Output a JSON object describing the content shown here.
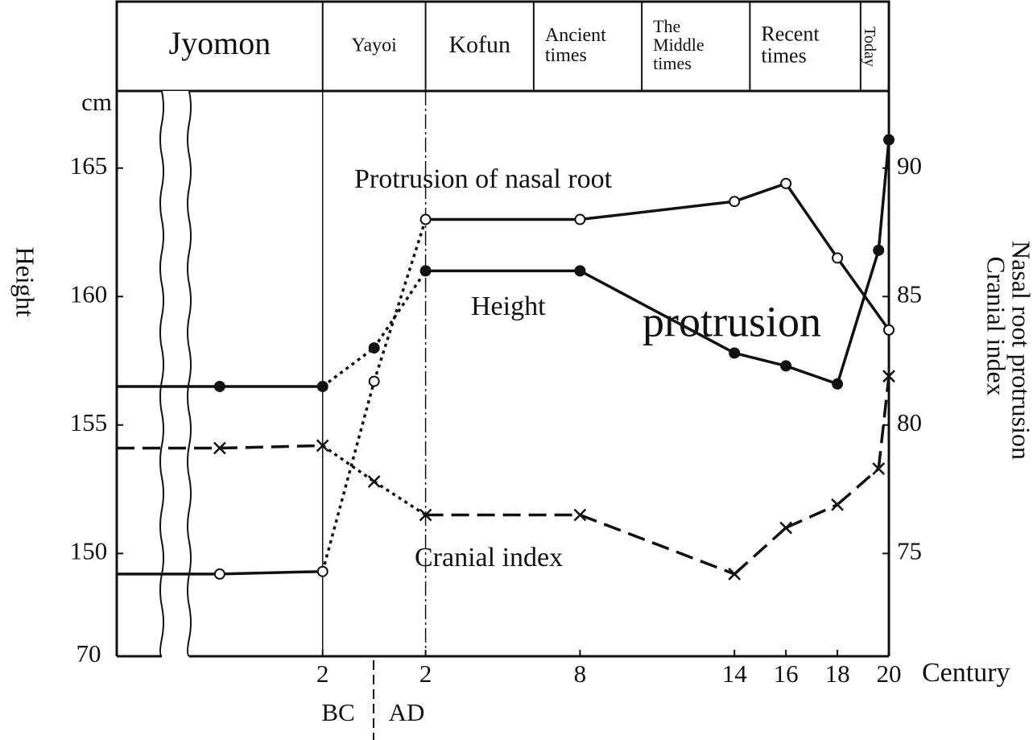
{
  "chart_data": {
    "type": "line",
    "eras": [
      {
        "label_lines": [
          "Jyomon"
        ],
        "end": -2
      },
      {
        "label_lines": [
          "Yayoi"
        ],
        "end": 2
      },
      {
        "label_lines": [
          "Kofun"
        ],
        "end": 6.2
      },
      {
        "label_lines": [
          "Ancient",
          "times"
        ],
        "end": 10.4
      },
      {
        "label_lines": [
          "The",
          "Middle",
          "times"
        ],
        "end": 14.6
      },
      {
        "label_lines": [
          "Recent",
          "times"
        ],
        "end": 18.9
      },
      {
        "label_lines": [
          "Today"
        ],
        "end": 20
      }
    ],
    "x_label": "Century",
    "era_marks": [
      "BC",
      "AD"
    ],
    "y_label": "Height",
    "y_unit": "cm",
    "y2_labels": [
      "Nasal root protrusion",
      "Cranial index"
    ],
    "axis_break_label": "70",
    "annotations": [
      "Protrusion of nasal root",
      "Height",
      "protrusion",
      "Cranial index"
    ],
    "xlim": [
      -10,
      20
    ],
    "xticks": [
      {
        "value": -2,
        "label": "2"
      },
      2,
      8,
      14,
      16,
      18,
      20
    ],
    "ylim": [
      146,
      168
    ],
    "yticks": [
      150,
      155,
      160,
      165
    ],
    "y2lim": [
      71,
      93
    ],
    "y2ticks": [
      75,
      80,
      85,
      90
    ],
    "transition_xlim": [
      -2,
      2
    ],
    "transition_style": "dotted",
    "series": [
      {
        "name": "Height",
        "color": "#111",
        "marker": "filled-circle",
        "line_style": "solid",
        "x": [
          -6,
          -2,
          0,
          2,
          8,
          14,
          16,
          18,
          19.6,
          20
        ],
        "values": [
          156.5,
          156.5,
          158,
          161,
          161,
          157.8,
          157.3,
          156.6,
          161.8,
          166.1
        ]
      },
      {
        "name": "Nasal root protrusion",
        "color": "#111",
        "marker": "open-circle",
        "line_style": "solid",
        "axis": "y2",
        "x": [
          -6,
          -2,
          0,
          2,
          8,
          14,
          16,
          18,
          20
        ],
        "values": [
          74.2,
          74.3,
          81.7,
          88.0,
          88.0,
          88.7,
          89.4,
          86.5,
          83.7
        ]
      },
      {
        "name": "Cranial index",
        "color": "#111",
        "marker": "cross",
        "line_style": "dashed",
        "axis": "y2",
        "x": [
          -6,
          -2,
          0,
          2,
          8,
          14,
          16,
          18,
          19.6,
          20
        ],
        "values": [
          79.1,
          79.2,
          77.8,
          76.5,
          76.5,
          74.2,
          76.0,
          76.9,
          78.3,
          81.9
        ]
      }
    ]
  }
}
